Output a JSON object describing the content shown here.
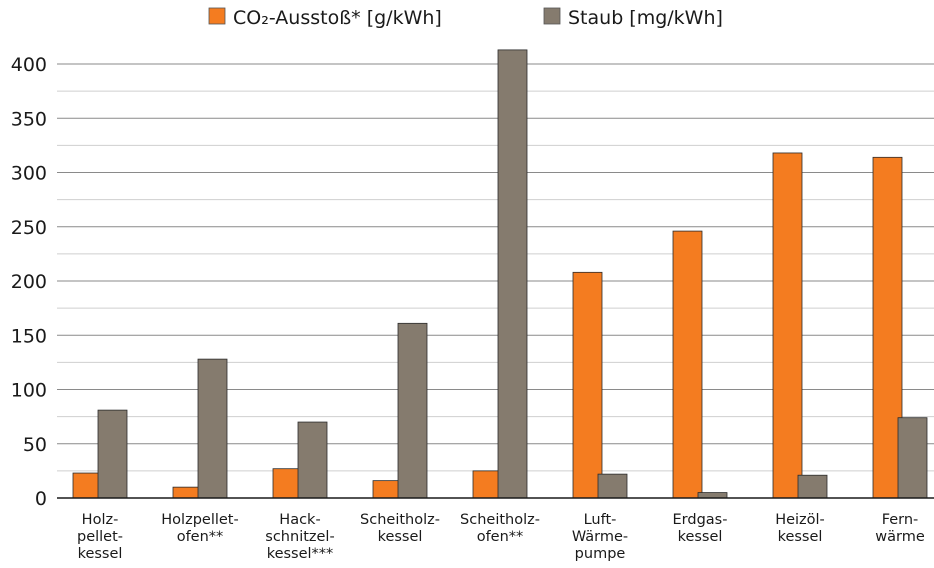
{
  "chart_data": {
    "type": "bar",
    "categories": [
      [
        "Holz-",
        "pellet-",
        "kessel"
      ],
      [
        "Holzpellet-",
        "ofen**"
      ],
      [
        "Hack-",
        "schnitzel-",
        "kessel***"
      ],
      [
        "Scheitholz-",
        "kessel"
      ],
      [
        "Scheitholz-",
        "ofen**"
      ],
      [
        "Luft-",
        "Wärme-",
        "pumpe"
      ],
      [
        "Erdgas-",
        "kessel"
      ],
      [
        "Heizöl-",
        "kessel"
      ],
      [
        "Fern-",
        "wärme"
      ]
    ],
    "series": [
      {
        "name": "CO₂-Ausstoß* [g/kWh]",
        "color": "#f47c20",
        "values": [
          23,
          10,
          27,
          16,
          25,
          208,
          246,
          318,
          314
        ]
      },
      {
        "name": "Staub [mg/kWh]",
        "color": "#857b6e",
        "values": [
          81,
          128,
          70,
          161,
          413,
          22,
          5,
          21,
          74
        ]
      }
    ],
    "y_ticks": [
      0,
      50,
      100,
      150,
      200,
      250,
      300,
      350,
      400
    ],
    "ylim": [
      0,
      420
    ],
    "grid": true,
    "legend_position": "top"
  }
}
